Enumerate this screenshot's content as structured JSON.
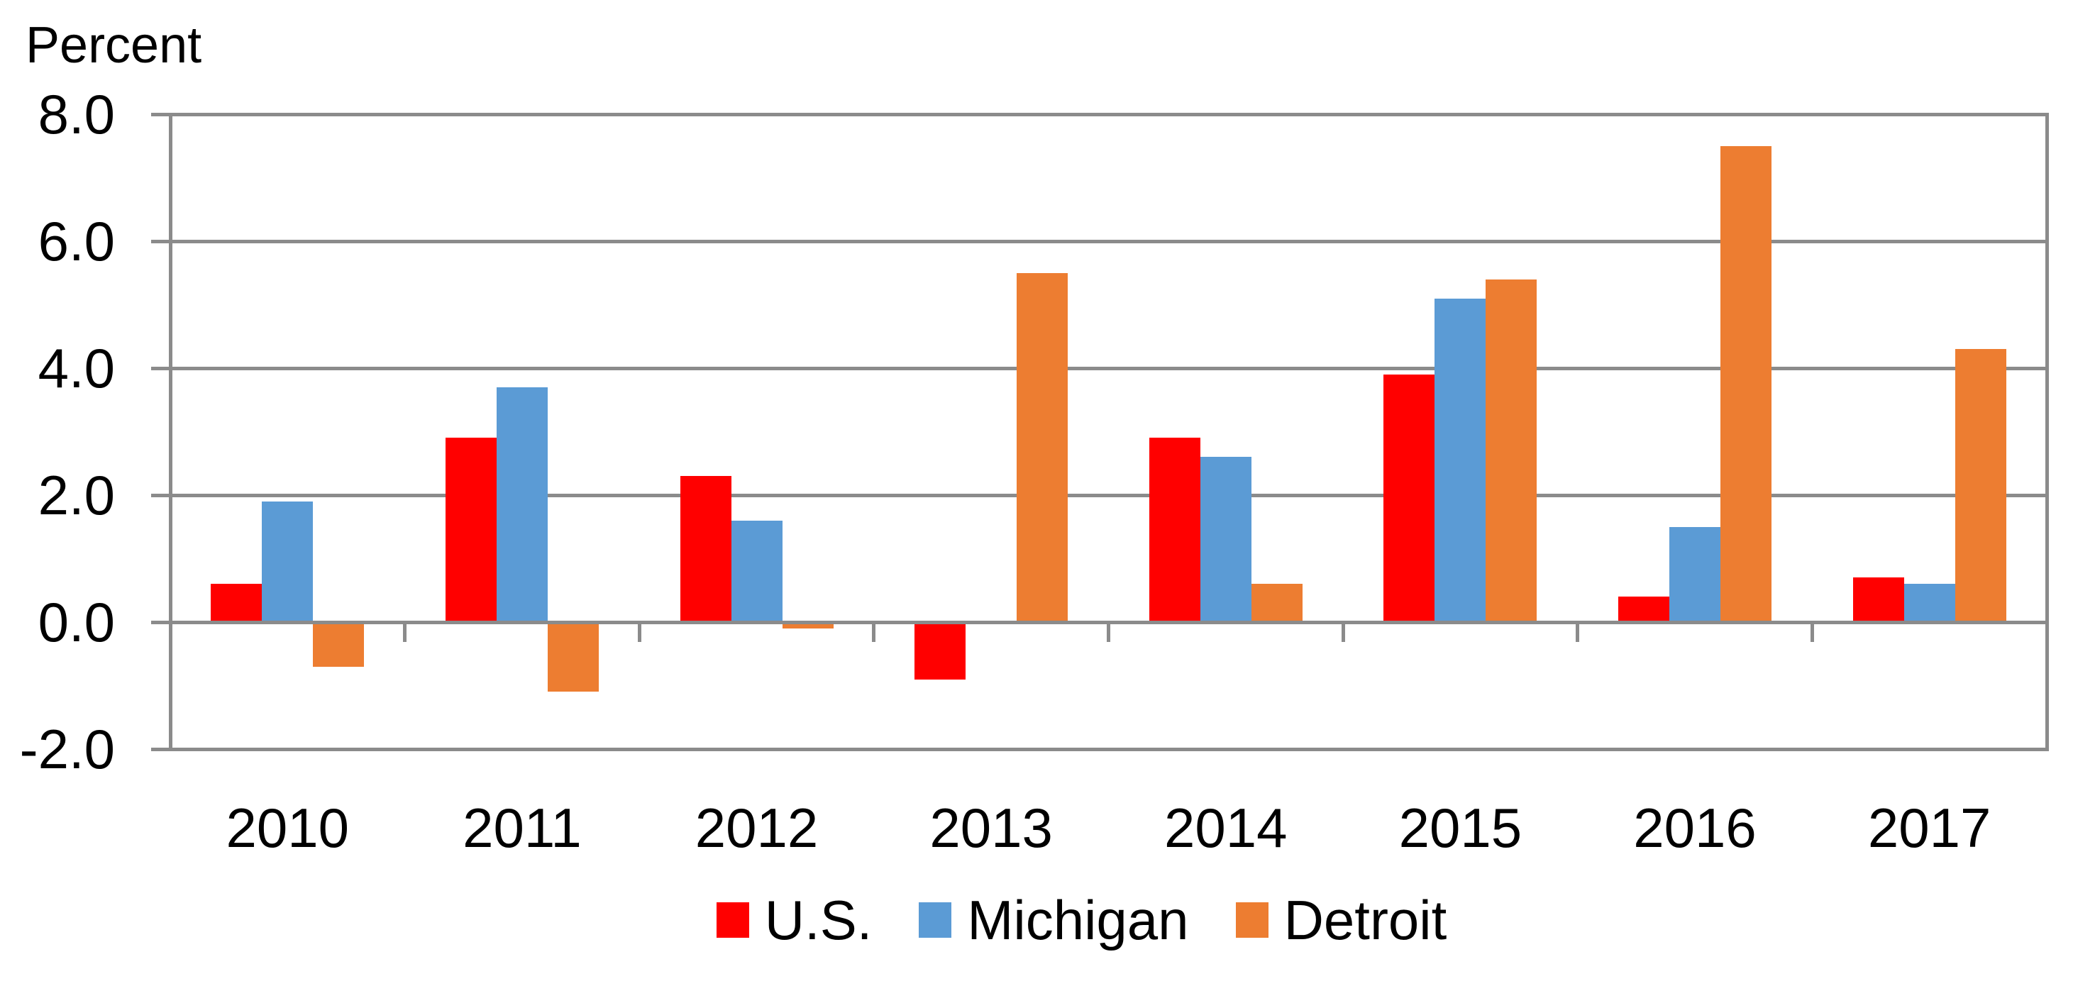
{
  "chart_data": {
    "type": "bar",
    "title": "Percent",
    "categories": [
      "2010",
      "2011",
      "2012",
      "2013",
      "2014",
      "2015",
      "2016",
      "2017"
    ],
    "series": [
      {
        "name": "U.S.",
        "color": "#FF0000",
        "values": [
          0.6,
          2.9,
          2.3,
          -0.9,
          2.9,
          3.9,
          0.4,
          0.7
        ]
      },
      {
        "name": "Michigan",
        "color": "#5B9BD5",
        "values": [
          1.9,
          3.7,
          1.6,
          0.0,
          2.6,
          5.1,
          1.5,
          0.6
        ]
      },
      {
        "name": "Detroit",
        "color": "#ED7D31",
        "values": [
          -0.7,
          -1.1,
          -0.1,
          5.5,
          0.6,
          5.4,
          7.5,
          4.3
        ]
      }
    ],
    "xlabel": "",
    "ylabel": "Percent",
    "ylim": [
      -2.0,
      8.0
    ],
    "ytick_step": 2.0,
    "yticks": [
      "8.0",
      "6.0",
      "4.0",
      "2.0",
      "0.0",
      "-2.0"
    ],
    "grid": true,
    "grid_color": "#8B8B8B",
    "legend_position": "bottom"
  }
}
